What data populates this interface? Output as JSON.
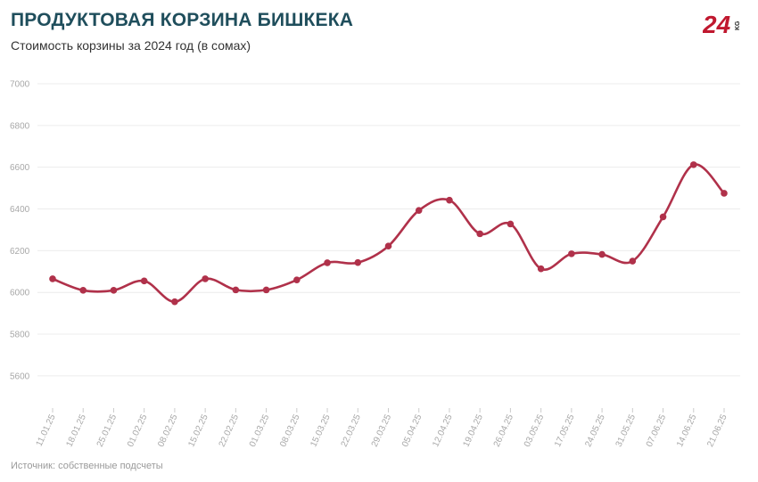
{
  "header": {
    "title": "ПРОДУКТОВАЯ КОРЗИНА БИШКЕКА",
    "subtitle": "Стоимость корзины за 2024 год (в сомах)"
  },
  "footer": {
    "source": "Источник: собственные подсчеты"
  },
  "logo": {
    "main": "24",
    "sub": "KG",
    "icon": "24kg-logo-icon"
  },
  "colors": {
    "line": "#b0314a",
    "title": "#1f4e5c",
    "grid": "#ececec",
    "tick": "#a8a8a8"
  },
  "chart_data": {
    "type": "line",
    "title": "ПРОДУКТОВАЯ КОРЗИНА БИШКЕКА",
    "subtitle": "Стоимость корзины за 2024 год (в сомах)",
    "xlabel": "",
    "ylabel": "",
    "ylim": [
      5450,
      7000
    ],
    "yticks": [
      5600,
      5800,
      6000,
      6200,
      6400,
      6600,
      6800,
      7000
    ],
    "grid": true,
    "legend": "none",
    "categories": [
      "11.01.25",
      "18.01.25",
      "25.01.25",
      "01.02.25",
      "08.02.25",
      "15.02.25",
      "22.02.25",
      "01.03.25",
      "08.03.25",
      "15.03.25",
      "22.03.25",
      "29.03.25",
      "05.04.25",
      "12.04.25",
      "19.04.25",
      "26.04.25",
      "03.05.25",
      "17.05.25",
      "24.05.25",
      "31.05.25",
      "07.06.25",
      "14.06.25",
      "21.06.25"
    ],
    "series": [
      {
        "values": [
          6065,
          6010,
          6010,
          6055,
          5955,
          6065,
          6012,
          6012,
          6060,
          6142,
          6143,
          6222,
          6393,
          6442,
          6281,
          6328,
          6113,
          6185,
          6182,
          6150,
          6362,
          6612,
          6475
        ]
      }
    ]
  }
}
